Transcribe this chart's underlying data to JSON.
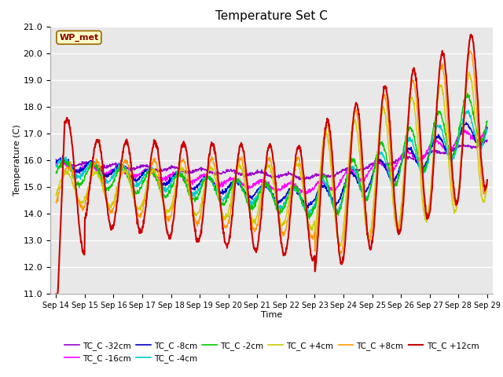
{
  "title": "Temperature Set C",
  "xlabel": "Time",
  "ylabel": "Temperature (C)",
  "ylim": [
    11.0,
    21.0
  ],
  "yticks": [
    11.0,
    12.0,
    13.0,
    14.0,
    15.0,
    16.0,
    17.0,
    18.0,
    19.0,
    20.0,
    21.0
  ],
  "xtick_labels": [
    "Sep 14",
    "Sep 15",
    "Sep 16",
    "Sep 17",
    "Sep 18",
    "Sep 19",
    "Sep 20",
    "Sep 21",
    "Sep 22",
    "Sep 23",
    "Sep 24",
    "Sep 25",
    "Sep 26",
    "Sep 27",
    "Sep 28",
    "Sep 29"
  ],
  "legend_labels": [
    "TC_C -32cm",
    "TC_C -16cm",
    "TC_C -8cm",
    "TC_C -4cm",
    "TC_C -2cm",
    "TC_C +4cm",
    "TC_C +8cm",
    "TC_C +12cm"
  ],
  "legend_colors": [
    "#9900cc",
    "#ff00ff",
    "#0000cc",
    "#00cccc",
    "#00cc00",
    "#cccc00",
    "#ff9900",
    "#cc0000"
  ],
  "annotation_text": "WP_met",
  "annotation_color": "#8B0000",
  "annotation_bbox_fc": "#ffffcc",
  "annotation_bbox_ec": "#996600",
  "background_color": "#e8e8e8",
  "fig_bg": "#ffffff"
}
